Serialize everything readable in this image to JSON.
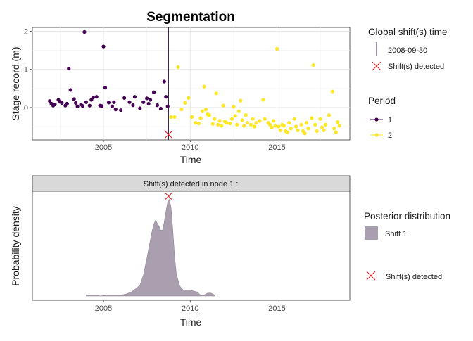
{
  "chart_data": [
    {
      "type": "scatter",
      "title": "Segmentation",
      "xlabel": "Time",
      "ylabel": "Stage record (m)",
      "xlim": [
        2000.9,
        2019.2
      ],
      "ylim": [
        -0.85,
        2.1
      ],
      "x_ticks": [
        2005,
        2010,
        2015
      ],
      "x_tick_labels": [
        "2005",
        "2010",
        "2015"
      ],
      "y_ticks": [
        0,
        1,
        2
      ],
      "y_tick_labels": [
        "0",
        "1",
        "2"
      ],
      "grid": true,
      "legend_position": "right",
      "colors": {
        "period_1": "#440154",
        "period_2": "#fde725",
        "shift_marker": "#e31a1c",
        "shift_line": "#2b0a3d"
      },
      "shift": {
        "time": 2008.75,
        "value": -0.71,
        "label": "2008-09-30"
      },
      "series": [
        {
          "name": "1",
          "x": [
            2001.9,
            2002.0,
            2002.1,
            2002.2,
            2002.4,
            2002.5,
            2002.6,
            2002.8,
            2002.9,
            2003.0,
            2003.1,
            2003.3,
            2003.4,
            2003.5,
            2003.7,
            2003.8,
            2003.9,
            2004.0,
            2004.2,
            2004.3,
            2004.4,
            2004.6,
            2004.8,
            2004.9,
            2005.0,
            2005.1,
            2005.3,
            2005.5,
            2005.6,
            2005.7,
            2006.0,
            2006.2,
            2006.5,
            2006.7,
            2006.8,
            2007.1,
            2007.3,
            2007.5,
            2007.6,
            2007.7,
            2007.9,
            2008.1,
            2008.3,
            2008.5,
            2008.6,
            2008.7
          ],
          "y": [
            0.17,
            0.1,
            0.05,
            0.08,
            0.2,
            0.15,
            0.12,
            0.05,
            0.1,
            1.02,
            0.46,
            0.22,
            0.12,
            0.03,
            0.08,
            0.04,
            1.98,
            0.14,
            0.05,
            0.2,
            0.26,
            0.28,
            0.05,
            0.04,
            1.6,
            0.52,
            0.13,
            0.03,
            0.14,
            -0.05,
            -0.07,
            0.25,
            0.14,
            0.06,
            0.28,
            -0.02,
            0.14,
            0.24,
            0.1,
            0.2,
            0.4,
            0.06,
            -0.03,
            0.68,
            0.28,
            0.03
          ]
        },
        {
          "name": "2",
          "x": [
            2008.9,
            2009.1,
            2009.3,
            2009.5,
            2009.7,
            2009.9,
            2010.1,
            2010.3,
            2010.5,
            2010.6,
            2010.7,
            2010.8,
            2010.9,
            2011.0,
            2011.1,
            2011.3,
            2011.4,
            2011.5,
            2011.6,
            2011.7,
            2011.8,
            2011.9,
            2012.0,
            2012.1,
            2012.3,
            2012.4,
            2012.5,
            2012.6,
            2012.7,
            2012.8,
            2012.9,
            2013.0,
            2013.1,
            2013.2,
            2013.3,
            2013.5,
            2013.6,
            2013.7,
            2013.8,
            2014.0,
            2014.2,
            2014.3,
            2014.5,
            2014.6,
            2014.7,
            2014.8,
            2014.9,
            2015.0,
            2015.1,
            2015.2,
            2015.3,
            2015.4,
            2015.5,
            2015.6,
            2015.7,
            2015.8,
            2016.0,
            2016.1,
            2016.2,
            2016.4,
            2016.5,
            2016.6,
            2016.7,
            2016.8,
            2017.0,
            2017.1,
            2017.2,
            2017.3,
            2017.5,
            2017.6,
            2017.7,
            2017.8,
            2018.0,
            2018.2,
            2018.3,
            2018.4,
            2018.5,
            2018.6
          ],
          "y": [
            -0.25,
            -0.25,
            1.06,
            -0.05,
            0.12,
            0.25,
            -0.25,
            -0.4,
            -0.42,
            -0.28,
            -0.1,
            0.55,
            -0.05,
            -0.18,
            -0.2,
            -0.43,
            -0.3,
            0.37,
            -0.45,
            -0.35,
            -0.48,
            0.05,
            -0.37,
            -0.4,
            -0.42,
            -0.3,
            0.02,
            -0.22,
            -0.45,
            -0.1,
            0.18,
            -0.33,
            -0.48,
            -0.2,
            -0.4,
            -0.45,
            -0.3,
            -0.5,
            -0.4,
            -0.35,
            0.2,
            -0.3,
            -0.4,
            -0.45,
            -0.52,
            -0.35,
            -0.48,
            1.54,
            -0.5,
            -0.6,
            -0.45,
            -0.48,
            -0.62,
            -0.65,
            -0.4,
            -0.55,
            -0.3,
            -0.5,
            -0.6,
            -0.45,
            -0.62,
            -0.68,
            -0.4,
            -0.55,
            -0.28,
            1.11,
            -0.45,
            -0.62,
            -0.3,
            -0.52,
            -0.6,
            -0.45,
            -0.2,
            0.42,
            -0.55,
            -0.65,
            -0.38,
            -0.48
          ]
        }
      ],
      "legend": {
        "shift_title": "Global shift(s) time",
        "shift_time_label": "2008-09-30",
        "shift_detected_label": "Shift(s) detected",
        "period_title": "Period",
        "period_labels": [
          "1",
          "2"
        ]
      }
    },
    {
      "type": "area",
      "title": "",
      "strip_label": "Shift(s) detected in node 1 :",
      "xlabel": "Time",
      "ylabel": "Probability density",
      "xlim": [
        2000.9,
        2019.2
      ],
      "ylim": [
        0,
        1.05
      ],
      "x_ticks": [
        2005,
        2010,
        2015
      ],
      "x_tick_labels": [
        "2005",
        "2010",
        "2015"
      ],
      "grid": false,
      "legend_position": "right",
      "colors": {
        "fill": "#a99fae",
        "stroke": "#8a7f90",
        "shift_marker": "#e31a1c"
      },
      "series": [
        {
          "name": "Shift 1",
          "x": [
            2004.0,
            2004.6,
            2004.8,
            2005.2,
            2005.5,
            2006.0,
            2006.3,
            2006.6,
            2006.9,
            2007.1,
            2007.3,
            2007.5,
            2007.7,
            2007.8,
            2007.9,
            2008.0,
            2008.1,
            2008.2,
            2008.3,
            2008.4,
            2008.5,
            2008.6,
            2008.7,
            2008.8,
            2008.9,
            2009.0,
            2009.1,
            2009.2,
            2009.4,
            2009.6,
            2009.8,
            2010.0,
            2010.2,
            2010.4,
            2010.6,
            2010.8,
            2011.0,
            2011.2,
            2011.4
          ],
          "y": [
            0.01,
            0.01,
            0.0,
            0.01,
            0.01,
            0.01,
            0.02,
            0.04,
            0.08,
            0.11,
            0.21,
            0.38,
            0.56,
            0.65,
            0.72,
            0.76,
            0.73,
            0.7,
            0.66,
            0.66,
            0.74,
            0.85,
            0.94,
            0.97,
            0.88,
            0.66,
            0.4,
            0.22,
            0.1,
            0.06,
            0.06,
            0.06,
            0.05,
            0.04,
            0.01,
            0.01,
            0.03,
            0.03,
            0.01
          ]
        }
      ],
      "shift_marker": {
        "x": 2008.75,
        "y": 1.0
      },
      "legend": {
        "title": "Posterior distribution",
        "series_label": "Shift 1",
        "detected_label": "Shift(s) detected"
      }
    }
  ]
}
